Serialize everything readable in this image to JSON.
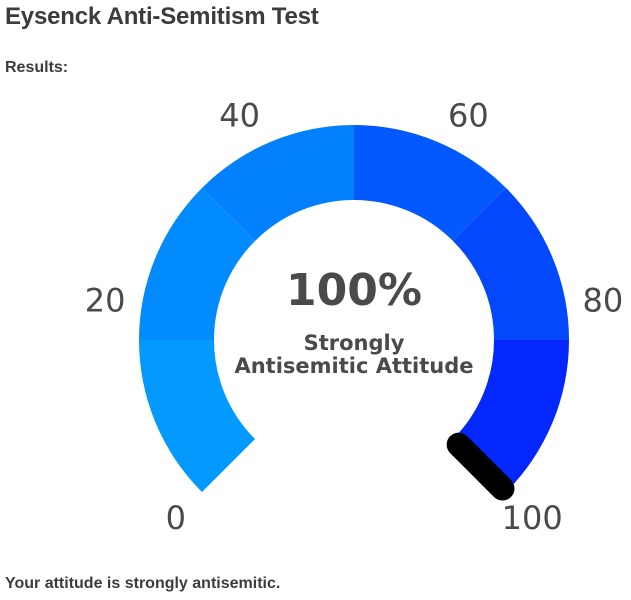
{
  "page": {
    "title": "Eysenck Anti-Semitism Test",
    "results_label": "Results:",
    "conclusion": "Your attitude is strongly antisemitic."
  },
  "gauge": {
    "value": 100,
    "min": 0,
    "max": 100,
    "value_text": "100%",
    "caption_line1": "Strongly",
    "caption_line2": "Antisemitic Attitude",
    "tick_labels": [
      "0",
      "20",
      "40",
      "60",
      "80",
      "100"
    ],
    "segment_colors": [
      "#0399ff",
      "#028bfd",
      "#0280fd",
      "#0359fd",
      "#0448fd",
      "#0327fd"
    ],
    "needle_color": "#000000"
  }
}
